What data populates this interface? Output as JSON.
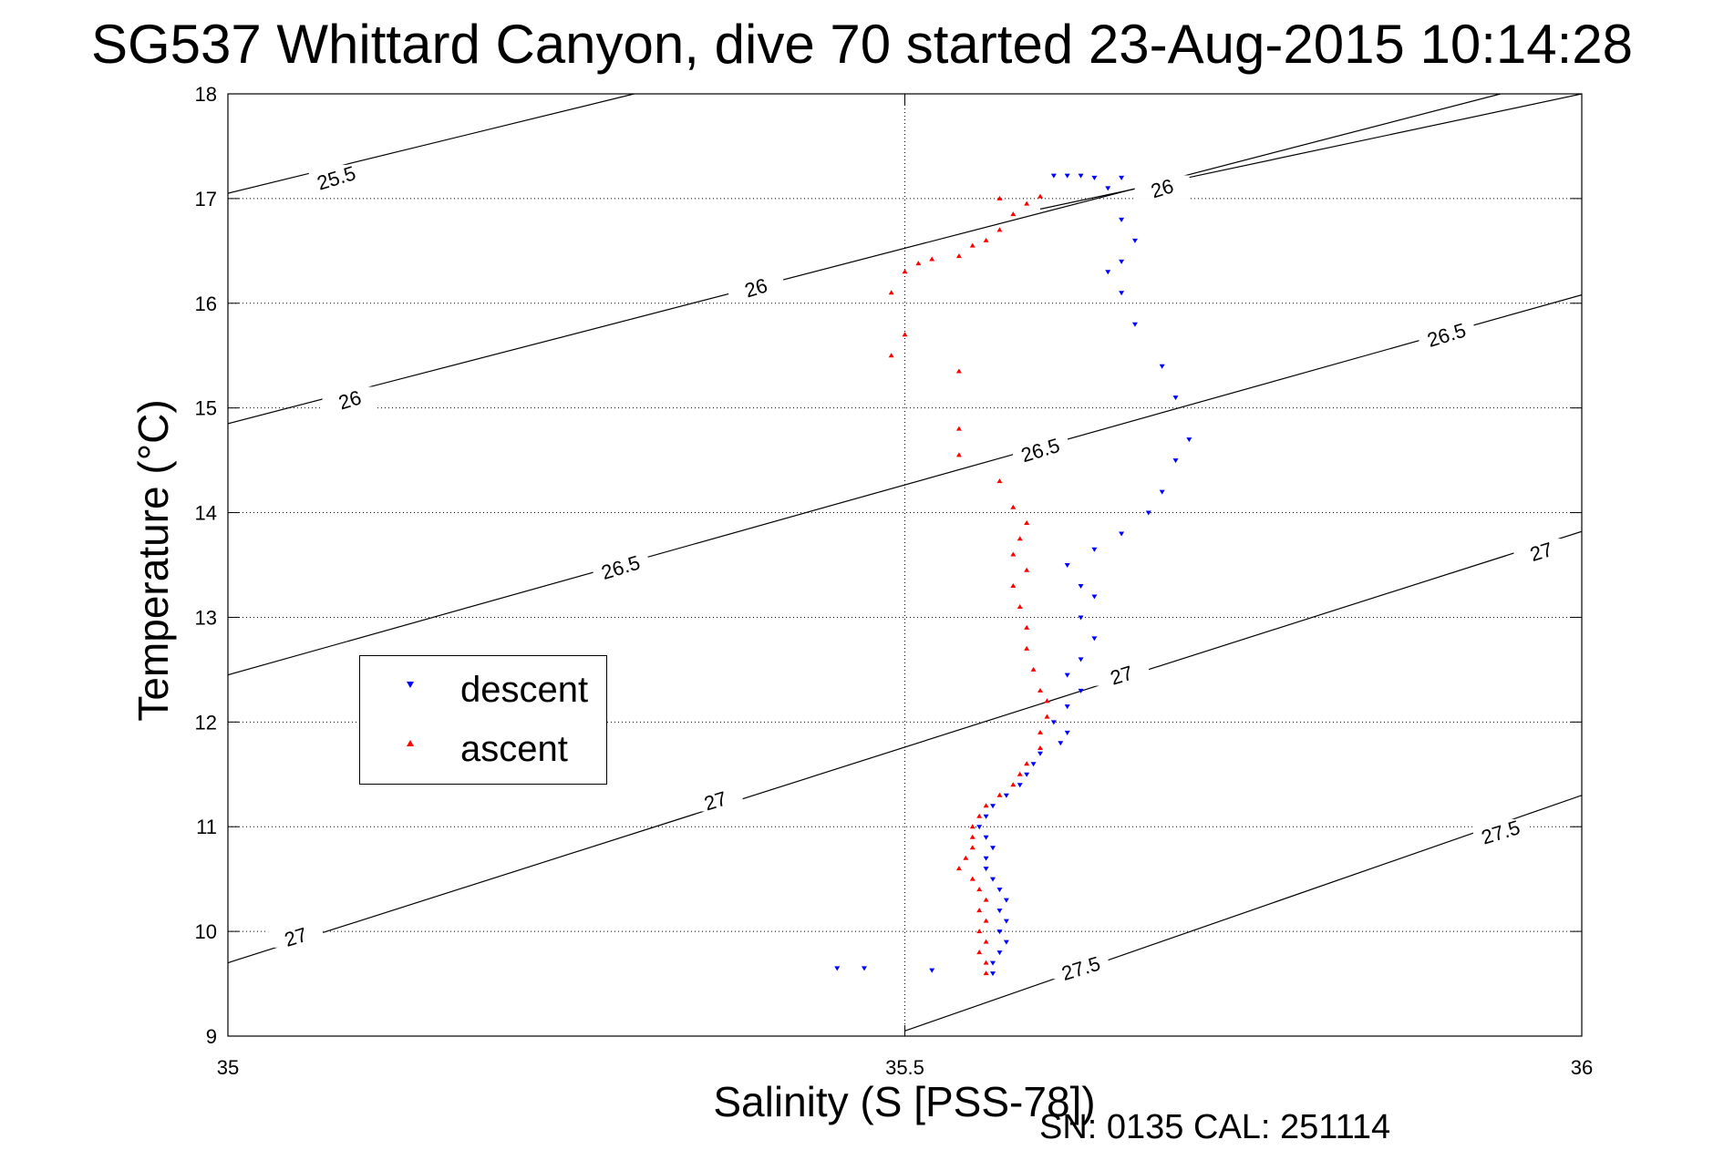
{
  "chart_data": {
    "type": "scatter",
    "title": "SG537 Whittard Canyon, dive 70 started 23-Aug-2015 10:14:28",
    "xlabel": "Salinity (S [PSS-78])",
    "ylabel": "Temperature (°C)",
    "xlim": [
      35,
      36
    ],
    "ylim": [
      9,
      18
    ],
    "xticks": [
      "35",
      "35.5",
      "36"
    ],
    "yticks": [
      "9",
      "10",
      "11",
      "12",
      "13",
      "14",
      "15",
      "16",
      "17",
      "18"
    ],
    "grid": true,
    "legend_position": "left",
    "series": [
      {
        "name": "descent",
        "color": "#0000ff",
        "marker": "triangle-down",
        "points": [
          [
            35.61,
            17.22
          ],
          [
            35.62,
            17.22
          ],
          [
            35.63,
            17.22
          ],
          [
            35.64,
            17.2
          ],
          [
            35.66,
            17.2
          ],
          [
            35.65,
            17.1
          ],
          [
            35.66,
            16.8
          ],
          [
            35.67,
            16.6
          ],
          [
            35.66,
            16.4
          ],
          [
            35.65,
            16.3
          ],
          [
            35.66,
            16.1
          ],
          [
            35.67,
            15.8
          ],
          [
            35.69,
            15.4
          ],
          [
            35.7,
            15.1
          ],
          [
            35.71,
            14.7
          ],
          [
            35.7,
            14.5
          ],
          [
            35.69,
            14.2
          ],
          [
            35.68,
            14.0
          ],
          [
            35.66,
            13.8
          ],
          [
            35.64,
            13.65
          ],
          [
            35.62,
            13.5
          ],
          [
            35.63,
            13.3
          ],
          [
            35.64,
            13.2
          ],
          [
            35.63,
            13.0
          ],
          [
            35.64,
            12.8
          ],
          [
            35.63,
            12.6
          ],
          [
            35.62,
            12.45
          ],
          [
            35.63,
            12.3
          ],
          [
            35.62,
            12.15
          ],
          [
            35.61,
            12.0
          ],
          [
            35.62,
            11.9
          ],
          [
            35.615,
            11.8
          ],
          [
            35.6,
            11.7
          ],
          [
            35.595,
            11.6
          ],
          [
            35.59,
            11.5
          ],
          [
            35.585,
            11.4
          ],
          [
            35.575,
            11.3
          ],
          [
            35.565,
            11.2
          ],
          [
            35.56,
            11.1
          ],
          [
            35.555,
            11.0
          ],
          [
            35.56,
            10.9
          ],
          [
            35.565,
            10.8
          ],
          [
            35.56,
            10.7
          ],
          [
            35.56,
            10.6
          ],
          [
            35.565,
            10.5
          ],
          [
            35.57,
            10.4
          ],
          [
            35.575,
            10.3
          ],
          [
            35.57,
            10.2
          ],
          [
            35.575,
            10.1
          ],
          [
            35.57,
            10.0
          ],
          [
            35.575,
            9.9
          ],
          [
            35.57,
            9.8
          ],
          [
            35.565,
            9.7
          ],
          [
            35.565,
            9.6
          ],
          [
            35.45,
            9.65
          ],
          [
            35.47,
            9.65
          ],
          [
            35.52,
            9.63
          ]
        ]
      },
      {
        "name": "ascent",
        "color": "#ff0000",
        "marker": "triangle-up",
        "points": [
          [
            35.6,
            17.02
          ],
          [
            35.59,
            16.95
          ],
          [
            35.57,
            17.0
          ],
          [
            35.58,
            16.85
          ],
          [
            35.57,
            16.7
          ],
          [
            35.56,
            16.6
          ],
          [
            35.55,
            16.55
          ],
          [
            35.54,
            16.45
          ],
          [
            35.52,
            16.42
          ],
          [
            35.51,
            16.38
          ],
          [
            35.5,
            16.3
          ],
          [
            35.49,
            16.1
          ],
          [
            35.5,
            15.7
          ],
          [
            35.49,
            15.5
          ],
          [
            35.54,
            15.35
          ],
          [
            35.54,
            14.8
          ],
          [
            35.54,
            14.55
          ],
          [
            35.57,
            14.3
          ],
          [
            35.58,
            14.05
          ],
          [
            35.59,
            13.9
          ],
          [
            35.585,
            13.75
          ],
          [
            35.58,
            13.6
          ],
          [
            35.59,
            13.45
          ],
          [
            35.58,
            13.3
          ],
          [
            35.585,
            13.1
          ],
          [
            35.59,
            12.9
          ],
          [
            35.59,
            12.7
          ],
          [
            35.595,
            12.5
          ],
          [
            35.6,
            12.3
          ],
          [
            35.605,
            12.2
          ],
          [
            35.605,
            12.05
          ],
          [
            35.6,
            11.9
          ],
          [
            35.6,
            11.75
          ],
          [
            35.59,
            11.6
          ],
          [
            35.585,
            11.5
          ],
          [
            35.58,
            11.4
          ],
          [
            35.57,
            11.3
          ],
          [
            35.56,
            11.2
          ],
          [
            35.555,
            11.1
          ],
          [
            35.55,
            11.0
          ],
          [
            35.55,
            10.9
          ],
          [
            35.55,
            10.8
          ],
          [
            35.545,
            10.7
          ],
          [
            35.54,
            10.6
          ],
          [
            35.55,
            10.5
          ],
          [
            35.555,
            10.4
          ],
          [
            35.56,
            10.3
          ],
          [
            35.555,
            10.2
          ],
          [
            35.56,
            10.1
          ],
          [
            35.555,
            10.0
          ],
          [
            35.56,
            9.9
          ],
          [
            35.555,
            9.8
          ],
          [
            35.56,
            9.7
          ],
          [
            35.56,
            9.6
          ]
        ]
      }
    ],
    "isopycnals": [
      {
        "label": "25.5",
        "points": [
          [
            35.0,
            17.05
          ],
          [
            35.3,
            18.0
          ]
        ]
      },
      {
        "label": "26",
        "points": [
          [
            35.0,
            14.85
          ],
          [
            35.94,
            18.0
          ]
        ]
      },
      {
        "label": "26",
        "points": [
          [
            35.6,
            16.9
          ],
          [
            36.0,
            18.0
          ]
        ]
      },
      {
        "label": "26.5",
        "points": [
          [
            35.0,
            12.45
          ],
          [
            36.0,
            16.08
          ]
        ]
      },
      {
        "label": "27",
        "points": [
          [
            35.0,
            9.7
          ],
          [
            36.0,
            13.82
          ]
        ]
      },
      {
        "label": "27.5",
        "points": [
          [
            35.5,
            9.05
          ],
          [
            36.0,
            11.3
          ]
        ]
      }
    ],
    "isopycnal_labels": [
      {
        "text": "25.5",
        "x": 35.08,
        "y": 17.2
      },
      {
        "text": "26",
        "x": 35.09,
        "y": 15.08
      },
      {
        "text": "26",
        "x": 35.39,
        "y": 16.15
      },
      {
        "text": "26",
        "x": 35.69,
        "y": 17.1
      },
      {
        "text": "26.5",
        "x": 35.29,
        "y": 13.48
      },
      {
        "text": "26.5",
        "x": 35.6,
        "y": 14.6
      },
      {
        "text": "26.5",
        "x": 35.9,
        "y": 15.7
      },
      {
        "text": "27",
        "x": 35.05,
        "y": 9.95
      },
      {
        "text": "27",
        "x": 35.36,
        "y": 11.25
      },
      {
        "text": "27",
        "x": 35.66,
        "y": 12.45
      },
      {
        "text": "27",
        "x": 35.97,
        "y": 13.63
      },
      {
        "text": "27.5",
        "x": 35.63,
        "y": 9.65
      },
      {
        "text": "27.5",
        "x": 35.94,
        "y": 10.95
      }
    ]
  },
  "footer": {
    "serial": "SN: 0135  CAL: 251114"
  }
}
